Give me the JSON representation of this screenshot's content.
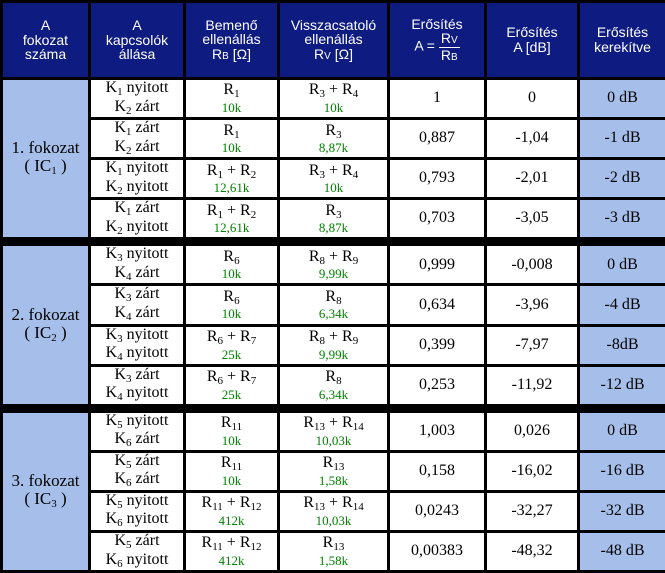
{
  "header": {
    "col1": [
      "A",
      "fokozat",
      "száma"
    ],
    "col2": [
      "A",
      "kapcsolók",
      "állása"
    ],
    "col3": [
      "Bemenő",
      "ellenállás",
      "R",
      "B",
      "[Ω]"
    ],
    "col4": [
      "Visszacsatoló",
      "ellenállás",
      "R",
      "V",
      "[Ω]"
    ],
    "col5": [
      "Erősítés",
      "A =",
      "R",
      "V",
      "R",
      "B"
    ],
    "col6": [
      "Erősítés",
      "A [dB]"
    ],
    "col7": [
      "Erősítés",
      "kerekítve"
    ]
  },
  "groups": [
    {
      "label": "1. fokozat",
      "ic": "( IC",
      "ic_sub": "1",
      "ic_close": ")",
      "rows": [
        {
          "k1": "K",
          "k1s": "1",
          "k1t": "nyitott",
          "k2": "K",
          "k2s": "2",
          "k2t": "zárt",
          "rb": [
            [
              "R",
              "1"
            ]
          ],
          "rbv": "10k",
          "rv": [
            [
              "R",
              "3"
            ],
            [
              "R",
              "4"
            ]
          ],
          "rvv": "10k",
          "a": "1",
          "db": "0",
          "r": "0 dB"
        },
        {
          "k1": "K",
          "k1s": "1",
          "k1t": "zárt",
          "k2": "K",
          "k2s": "2",
          "k2t": "zárt",
          "rb": [
            [
              "R",
              "1"
            ]
          ],
          "rbv": "10k",
          "rv": [
            [
              "R",
              "3"
            ]
          ],
          "rvv": "8,87k",
          "a": "0,887",
          "db": "-1,04",
          "r": "-1 dB"
        },
        {
          "k1": "K",
          "k1s": "1",
          "k1t": "nyitott",
          "k2": "K",
          "k2s": "2",
          "k2t": "nyitott",
          "rb": [
            [
              "R",
              "1"
            ],
            [
              "R",
              "2"
            ]
          ],
          "rbv": "12,61k",
          "rv": [
            [
              "R",
              "3"
            ],
            [
              "R",
              "4"
            ]
          ],
          "rvv": "10k",
          "a": "0,793",
          "db": "-2,01",
          "r": "-2 dB"
        },
        {
          "k1": "K",
          "k1s": "1",
          "k1t": "zárt",
          "k2": "K",
          "k2s": "2",
          "k2t": "nyitott",
          "rb": [
            [
              "R",
              "1"
            ],
            [
              "R",
              "2"
            ]
          ],
          "rbv": "12,61k",
          "rv": [
            [
              "R",
              "3"
            ]
          ],
          "rvv": "8,87k",
          "a": "0,703",
          "db": "-3,05",
          "r": "-3 dB"
        }
      ]
    },
    {
      "label": "2. fokozat",
      "ic": "( IC",
      "ic_sub": "2",
      "ic_close": ")",
      "rows": [
        {
          "k1": "K",
          "k1s": "3",
          "k1t": "nyitott",
          "k2": "K",
          "k2s": "4",
          "k2t": "zárt",
          "rb": [
            [
              "R",
              "6"
            ]
          ],
          "rbv": "10k",
          "rv": [
            [
              "R",
              "8"
            ],
            [
              "R",
              "9"
            ]
          ],
          "rvv": "9,99k",
          "a": "0,999",
          "db": "-0,008",
          "r": "0 dB"
        },
        {
          "k1": "K",
          "k1s": "3",
          "k1t": "zárt",
          "k2": "K",
          "k2s": "4",
          "k2t": "zárt",
          "rb": [
            [
              "R",
              "6"
            ]
          ],
          "rbv": "10k",
          "rv": [
            [
              "R",
              "8"
            ]
          ],
          "rvv": "6,34k",
          "a": "0,634",
          "db": "-3,96",
          "r": "-4 dB"
        },
        {
          "k1": "K",
          "k1s": "3",
          "k1t": "nyitott",
          "k2": "K",
          "k2s": "4",
          "k2t": "nyitott",
          "rb": [
            [
              "R",
              "6"
            ],
            [
              "R",
              "7"
            ]
          ],
          "rbv": "25k",
          "rv": [
            [
              "R",
              "8"
            ],
            [
              "R",
              "9"
            ]
          ],
          "rvv": "9,99k",
          "a": "0,399",
          "db": "-7,97",
          "r": "-8dB"
        },
        {
          "k1": "K",
          "k1s": "3",
          "k1t": "zárt",
          "k2": "K",
          "k2s": "4",
          "k2t": "nyitott",
          "rb": [
            [
              "R",
              "6"
            ],
            [
              "R",
              "7"
            ]
          ],
          "rbv": "25k",
          "rv": [
            [
              "R",
              "8"
            ]
          ],
          "rvv": "6,34k",
          "a": "0,253",
          "db": "-11,92",
          "r": "-12 dB"
        }
      ]
    },
    {
      "label": "3. fokozat",
      "ic": "( IC",
      "ic_sub": "3",
      "ic_close": ")",
      "rows": [
        {
          "k1": "K",
          "k1s": "5",
          "k1t": "nyitott",
          "k2": "K",
          "k2s": "6",
          "k2t": "zárt",
          "rb": [
            [
              "R",
              "11"
            ]
          ],
          "rbv": "10k",
          "rv": [
            [
              "R",
              "13"
            ],
            [
              "R",
              "14"
            ]
          ],
          "rvv": "10,03k",
          "a": "1,003",
          "db": "0,026",
          "r": "0 dB"
        },
        {
          "k1": "K",
          "k1s": "5",
          "k1t": "zárt",
          "k2": "K",
          "k2s": "6",
          "k2t": "zárt",
          "rb": [
            [
              "R",
              "11"
            ]
          ],
          "rbv": "10k",
          "rv": [
            [
              "R",
              "13"
            ]
          ],
          "rvv": "1,58k",
          "a": "0,158",
          "db": "-16,02",
          "r": "-16 dB"
        },
        {
          "k1": "K",
          "k1s": "5",
          "k1t": "nyitott",
          "k2": "K",
          "k2s": "6",
          "k2t": "nyitott",
          "rb": [
            [
              "R",
              "11"
            ],
            [
              "R",
              "12"
            ]
          ],
          "rbv": "412k",
          "rv": [
            [
              "R",
              "13"
            ],
            [
              "R",
              "14"
            ]
          ],
          "rvv": "10,03k",
          "a": "0,0243",
          "db": "-32,27",
          "r": "-32 dB"
        },
        {
          "k1": "K",
          "k1s": "5",
          "k1t": "zárt",
          "k2": "K",
          "k2s": "6",
          "k2t": "nyitott",
          "rb": [
            [
              "R",
              "11"
            ],
            [
              "R",
              "12"
            ]
          ],
          "rbv": "412k",
          "rv": [
            [
              "R",
              "13"
            ]
          ],
          "rvv": "1,58k",
          "a": "0,00383",
          "db": "-48,32",
          "r": "-48 dB"
        }
      ]
    }
  ],
  "plus": "+",
  "colors": {
    "header_bg": "#0e1b80",
    "group_bg": "#a6bfea",
    "value_green": "#008000",
    "border": "#000000"
  }
}
